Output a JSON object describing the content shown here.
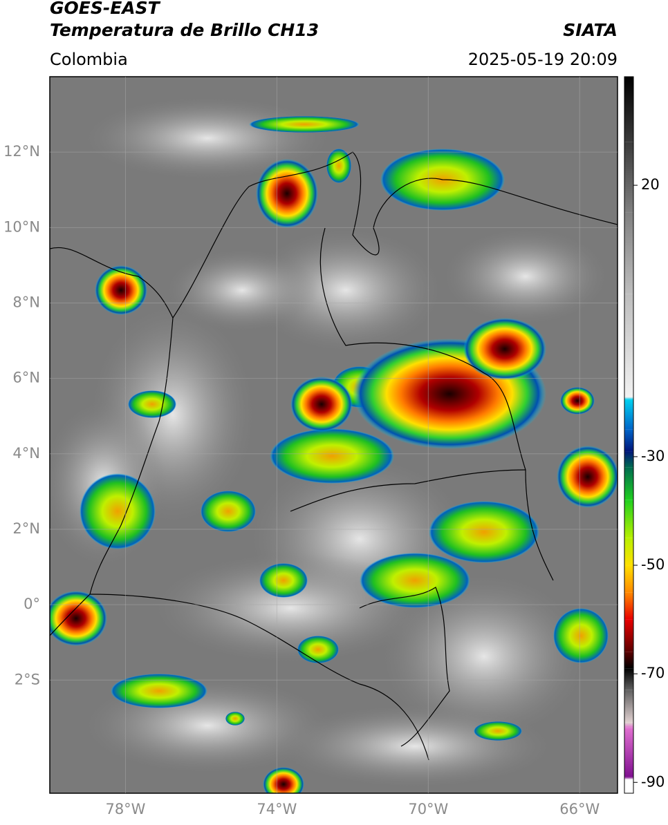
{
  "header": {
    "title": "GOES-EAST",
    "subtitle": "Temperatura de Brillo CH13",
    "agency": "SIATA",
    "region": "Colombia",
    "timestamp": "2025-05-19 20:09"
  },
  "map": {
    "lon_range": [
      -80,
      -65
    ],
    "lat_range": [
      -5,
      14
    ],
    "grid": true,
    "lon_ticks": [
      {
        "value": -78,
        "label": "78°W"
      },
      {
        "value": -74,
        "label": "74°W"
      },
      {
        "value": -70,
        "label": "70°W"
      },
      {
        "value": -66,
        "label": "66°W"
      }
    ],
    "lat_ticks": [
      {
        "value": 12,
        "label": "12°N"
      },
      {
        "value": 10,
        "label": "10°N"
      },
      {
        "value": 8,
        "label": "8°N"
      },
      {
        "value": 6,
        "label": "6°N"
      },
      {
        "value": 4,
        "label": "4°N"
      },
      {
        "value": 2,
        "label": "2°N"
      },
      {
        "value": 0,
        "label": "0°"
      },
      {
        "value": -2,
        "label": "2°S"
      }
    ]
  },
  "colorbar": {
    "range": [
      -92,
      40
    ],
    "ticks": [
      20,
      -30,
      -50,
      -70,
      -90
    ],
    "stops": [
      {
        "value": 40,
        "color": "#000000"
      },
      {
        "value": 28,
        "color": "#3a3a3a"
      },
      {
        "value": 15,
        "color": "#808080"
      },
      {
        "value": 0,
        "color": "#bdbdbd"
      },
      {
        "value": -19,
        "color": "#f2f2f2"
      },
      {
        "value": -19.5,
        "color": "#00d0f0"
      },
      {
        "value": -25,
        "color": "#0064c8"
      },
      {
        "value": -29,
        "color": "#00167a"
      },
      {
        "value": -32,
        "color": "#006c50"
      },
      {
        "value": -38,
        "color": "#20d020"
      },
      {
        "value": -45,
        "color": "#b8f000"
      },
      {
        "value": -50,
        "color": "#ffe000"
      },
      {
        "value": -55,
        "color": "#ff8a00"
      },
      {
        "value": -60,
        "color": "#e80000"
      },
      {
        "value": -66,
        "color": "#5a0000"
      },
      {
        "value": -69,
        "color": "#000000"
      },
      {
        "value": -73,
        "color": "#606060"
      },
      {
        "value": -79,
        "color": "#e0d0d0"
      },
      {
        "value": -80,
        "color": "#e070d0"
      },
      {
        "value": -89,
        "color": "#801090"
      },
      {
        "value": -89.5,
        "color": "#ffffff"
      },
      {
        "value": -92,
        "color": "#ffffff"
      }
    ]
  }
}
